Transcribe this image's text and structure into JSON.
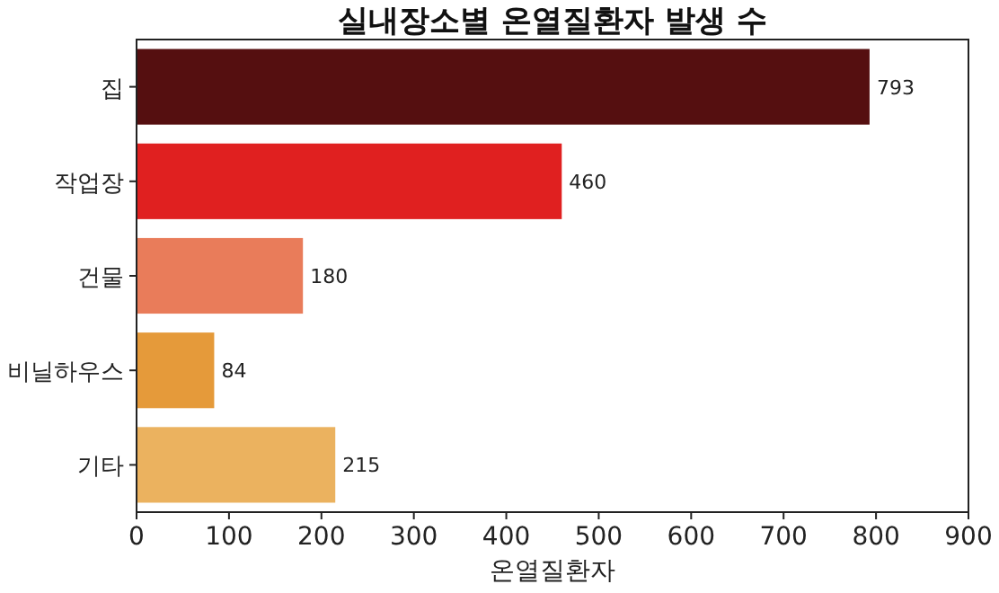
{
  "chart_data": {
    "type": "bar",
    "orientation": "horizontal",
    "title": "실내장소별 온열질환자 발생 수",
    "xlabel": "온열질환자",
    "categories": [
      "집",
      "작업장",
      "건물",
      "비닐하우스",
      "기타"
    ],
    "values": [
      793,
      460,
      180,
      84,
      215
    ],
    "colors": [
      "#550f10",
      "#e02020",
      "#e97c5a",
      "#e59a3a",
      "#ebb25f"
    ],
    "xlim": [
      0,
      900
    ],
    "xticks": [
      0,
      100,
      200,
      300,
      400,
      500,
      600,
      700,
      800,
      900
    ],
    "data_labels": true
  }
}
